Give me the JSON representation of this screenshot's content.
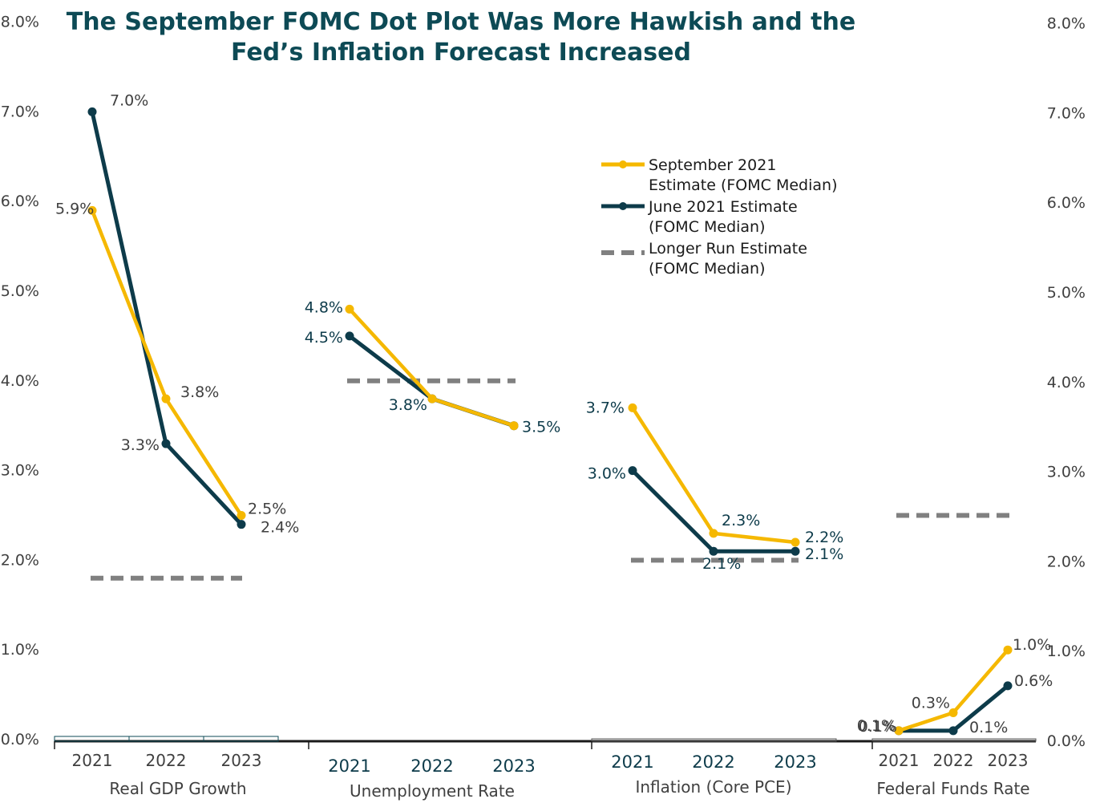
{
  "chart_data": {
    "type": "line",
    "title_line1": "The September FOMC Dot Plot Was More Hawkish and the",
    "title_line2": "Fed’s Inflation Forecast Increased",
    "ylim": [
      0,
      8
    ],
    "y_ticks": [
      "0.0%",
      "1.0%",
      "2.0%",
      "3.0%",
      "4.0%",
      "5.0%",
      "6.0%",
      "7.0%",
      "8.0%"
    ],
    "colors": {
      "september": "#F5B800",
      "june": "#0D3B4A",
      "longer_run": "#808080",
      "title": "#0D4A55",
      "label_dark": "#0D3B4A",
      "label_gray": "#404040"
    },
    "legend": {
      "position": "top-center",
      "entries": [
        {
          "lines": [
            "September 2021",
            "Estimate (FOMC Median)"
          ]
        },
        {
          "lines": [
            "June 2021 Estimate",
            "(FOMC Median)"
          ]
        },
        {
          "lines": [
            "Longer Run Estimate",
            "(FOMC Median)"
          ]
        }
      ]
    },
    "groups": [
      {
        "name": "Real GDP Growth",
        "categories": [
          "2021",
          "2022",
          "2023"
        ],
        "september": [
          5.9,
          3.8,
          2.5
        ],
        "june": [
          7.0,
          3.3,
          2.4
        ],
        "longer_run": 1.8,
        "september_labels": [
          "5.9%",
          "3.8%",
          "2.5%"
        ],
        "june_labels": [
          "7.0%",
          "3.3%",
          "2.4%"
        ]
      },
      {
        "name": "Unemployment Rate",
        "categories": [
          "2021",
          "2022",
          "2023"
        ],
        "september": [
          4.8,
          3.8,
          3.5
        ],
        "june": [
          4.5,
          3.8,
          3.5
        ],
        "longer_run": 4.0,
        "september_labels": [
          "4.8%",
          "",
          ""
        ],
        "june_labels": [
          "4.5%",
          "3.8%",
          "3.5%"
        ]
      },
      {
        "name": "Inflation (Core PCE)",
        "categories": [
          "2021",
          "2022",
          "2023"
        ],
        "september": [
          3.7,
          2.3,
          2.2
        ],
        "june": [
          3.0,
          2.1,
          2.1
        ],
        "longer_run": 2.0,
        "september_labels": [
          "3.7%",
          "2.3%",
          "2.2%"
        ],
        "june_labels": [
          "3.0%",
          "2.1%",
          "2.1%"
        ]
      },
      {
        "name": "Federal Funds Rate",
        "categories": [
          "2021",
          "2022",
          "2023"
        ],
        "september": [
          0.1,
          0.3,
          1.0
        ],
        "june": [
          0.1,
          0.1,
          0.6
        ],
        "longer_run": 2.5,
        "september_labels": [
          "0.1%",
          "0.3%",
          "1.0%"
        ],
        "june_labels": [
          "",
          "0.1%",
          "0.6%"
        ]
      }
    ]
  }
}
